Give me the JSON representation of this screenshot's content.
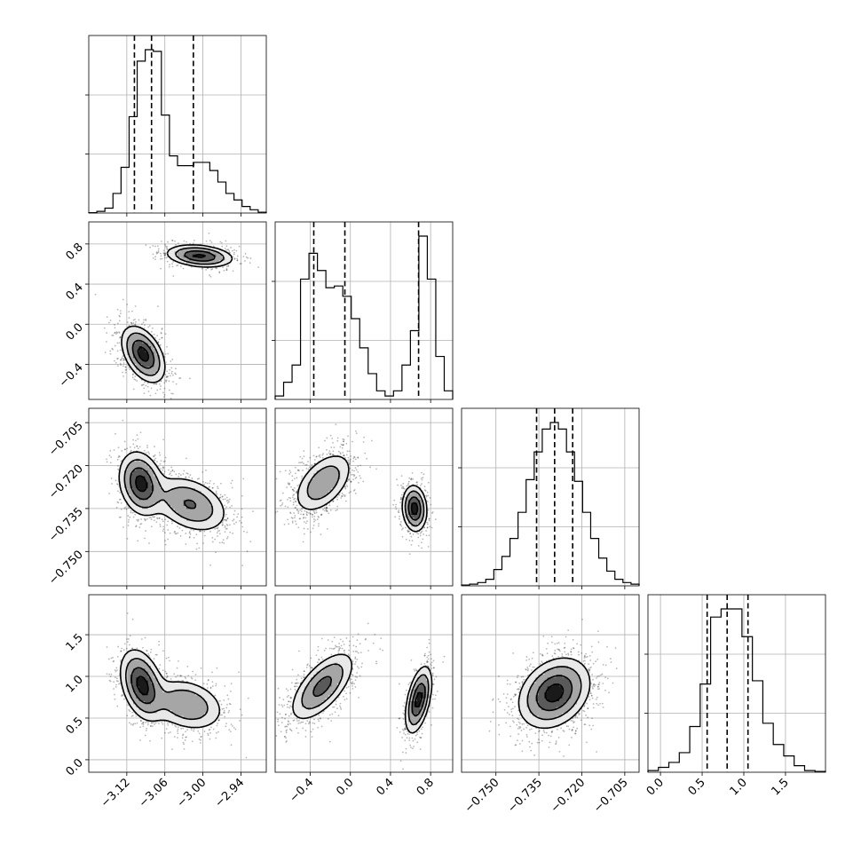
{
  "chart_data": {
    "type": "corner",
    "parameters": [
      {
        "range": [
          -3.18,
          -2.9
        ],
        "ticks": [
          "−3.12",
          "−3.06",
          "−3.00",
          "−2.94"
        ],
        "tick_values": [
          -3.12,
          -3.06,
          -3.0,
          -2.94
        ],
        "quantiles": [
          -3.108,
          -3.081,
          -3.015
        ],
        "hist_bins": [
          0.2,
          1,
          3,
          12,
          28,
          59,
          93,
          100,
          99,
          60,
          35,
          29,
          29,
          31,
          31,
          26,
          19,
          12,
          8,
          4,
          2,
          0.5
        ],
        "components": [
          {
            "mean": -3.096,
            "sd": 0.018,
            "weight": 0.62
          },
          {
            "mean": -3.0,
            "sd": 0.027,
            "weight": 0.38
          }
        ]
      },
      {
        "range": [
          -0.75,
          1.02
        ],
        "ticks": [
          "−0.4",
          "0.0",
          "0.4",
          "0.8"
        ],
        "tick_values": [
          -0.4,
          0.0,
          0.4,
          0.8
        ],
        "quantiles": [
          -0.365,
          -0.055,
          0.68
        ],
        "hist_bins": [
          2,
          10,
          20,
          70,
          85,
          75,
          65,
          66,
          60,
          47,
          30,
          15,
          5,
          2,
          5,
          20,
          40,
          95,
          70,
          25,
          5
        ],
        "components": [
          {
            "mean": -0.28,
            "sd": 0.16,
            "weight": 0.62
          },
          {
            "mean": 0.69,
            "sd": 0.07,
            "weight": 0.38
          }
        ]
      },
      {
        "range": [
          -0.762,
          -0.7
        ],
        "ticks": [
          "−0.750",
          "−0.735",
          "−0.720",
          "−0.705"
        ],
        "tick_values": [
          -0.75,
          -0.735,
          -0.72,
          -0.705
        ],
        "quantiles": [
          -0.7358,
          -0.7295,
          -0.7232
        ],
        "hist_bins": [
          0.5,
          1,
          2,
          4,
          10,
          18,
          29,
          45,
          65,
          82,
          96,
          100,
          96,
          82,
          64,
          45,
          29,
          17,
          9,
          4,
          2,
          1
        ],
        "components": [
          {
            "mean": -0.7296,
            "sd": 0.006,
            "weight": 1.0
          }
        ]
      },
      {
        "range": [
          -0.15,
          1.98
        ],
        "ticks": [
          "0.0",
          "0.5",
          "1.0",
          "1.5"
        ],
        "tick_values": [
          0.0,
          0.5,
          1.0,
          1.5
        ],
        "quantiles": [
          0.56,
          0.8,
          1.05
        ],
        "hist_bins": [
          1,
          3,
          6,
          12,
          28,
          54,
          95,
          100,
          100,
          83,
          56,
          30,
          17,
          10,
          4,
          1,
          0.5
        ],
        "components": [
          {
            "mean": 0.8,
            "sd": 0.22,
            "weight": 1.0
          }
        ]
      }
    ],
    "joint_modes": {
      "p1_p0": [
        {
          "w": 0.62,
          "mx": -3.094,
          "my": -0.3,
          "sx": 0.017,
          "sy": 0.14,
          "rho": -0.45
        },
        {
          "w": 0.38,
          "mx": -3.005,
          "my": 0.68,
          "sx": 0.026,
          "sy": 0.055,
          "rho": -0.25
        }
      ],
      "p2_p0": [
        {
          "w": 0.5,
          "mx": -3.098,
          "my": -0.7262,
          "sx": 0.017,
          "sy": 0.0055,
          "rho": -0.2
        },
        {
          "w": 0.5,
          "mx": -3.02,
          "my": -0.7335,
          "sx": 0.03,
          "sy": 0.005,
          "rho": -0.35
        }
      ],
      "p2_p1": [
        {
          "w": 0.62,
          "mx": -0.27,
          "my": -0.726,
          "sx": 0.15,
          "sy": 0.0055,
          "rho": 0.5
        },
        {
          "w": 0.38,
          "mx": 0.64,
          "my": -0.735,
          "sx": 0.06,
          "sy": 0.004,
          "rho": -0.1
        }
      ],
      "p3_p0": [
        {
          "w": 0.55,
          "mx": -3.096,
          "my": 0.9,
          "sx": 0.017,
          "sy": 0.21,
          "rho": -0.35
        },
        {
          "w": 0.45,
          "mx": -3.025,
          "my": 0.66,
          "sx": 0.03,
          "sy": 0.16,
          "rho": -0.25
        }
      ],
      "p3_p1": [
        {
          "w": 0.62,
          "mx": -0.28,
          "my": 0.88,
          "sx": 0.16,
          "sy": 0.21,
          "rho": 0.65
        },
        {
          "w": 0.38,
          "mx": 0.68,
          "my": 0.72,
          "sx": 0.065,
          "sy": 0.2,
          "rho": 0.5
        }
      ],
      "p3_p2": [
        {
          "w": 1.0,
          "mx": -0.7296,
          "my": 0.8,
          "sx": 0.0062,
          "sy": 0.21,
          "rho": 0.28
        }
      ]
    },
    "contour_levels": [
      0.135,
      0.32,
      0.61,
      0.88
    ],
    "colors": {
      "points": "#000000",
      "fill": "#d6d6d6",
      "lines": "#000000",
      "grid": "#b0b0b0"
    },
    "grid": true
  }
}
